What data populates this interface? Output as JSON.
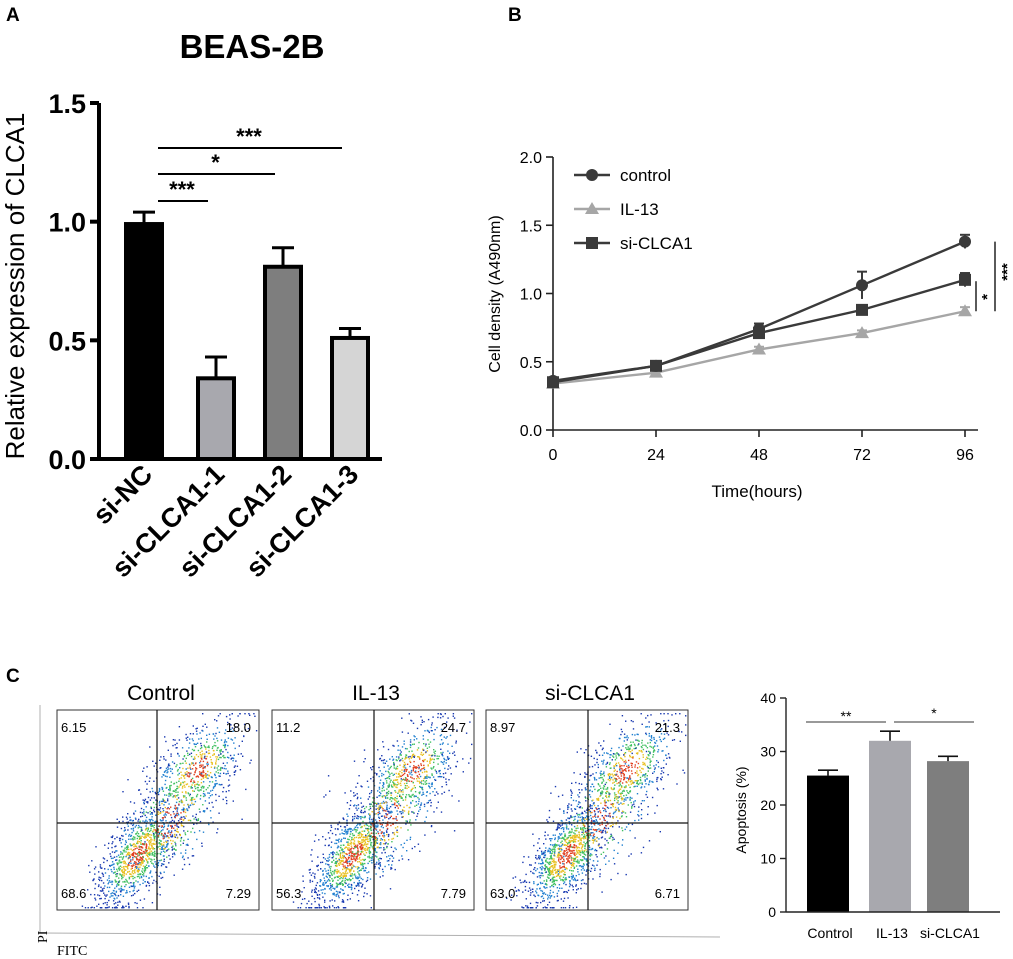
{
  "panel_labels": {
    "a": "A",
    "b": "B",
    "c": "C"
  },
  "chart_data": [
    {
      "id": "A",
      "type": "bar",
      "title": "BEAS-2B",
      "xlabel": "",
      "ylabel": "Relative expression of CLCA1",
      "ylim": [
        0,
        1.5
      ],
      "yticks": [
        "0.0",
        "0.5",
        "1.0",
        "1.5"
      ],
      "categories": [
        "si-NC",
        "si-CLCA1-1",
        "si-CLCA1-2",
        "si-CLCA1-3"
      ],
      "values": [
        0.99,
        0.34,
        0.81,
        0.51
      ],
      "errors": [
        0.05,
        0.09,
        0.08,
        0.04
      ],
      "colors": [
        "#000000",
        "#a8a8ae",
        "#7e7e7e",
        "#d5d5d5"
      ],
      "significance": [
        {
          "from": 0,
          "to": 1,
          "label": "***"
        },
        {
          "from": 0,
          "to": 2,
          "label": "*"
        },
        {
          "from": 0,
          "to": 3,
          "label": "***"
        }
      ]
    },
    {
      "id": "B",
      "type": "line",
      "xlabel": "Time(hours)",
      "ylabel": "Cell density (A490nm)",
      "x": [
        0,
        24,
        48,
        72,
        96
      ],
      "xticks": [
        "0",
        "24",
        "48",
        "72",
        "96"
      ],
      "ylim": [
        0,
        2.0
      ],
      "yticks": [
        "0.0",
        "0.5",
        "1.0",
        "1.5",
        "2.0"
      ],
      "legend_position": "top-left",
      "series": [
        {
          "name": "control",
          "marker": "circle",
          "color": "#3a3a3a",
          "values": [
            0.36,
            0.47,
            0.74,
            1.06,
            1.38
          ],
          "errors": [
            0.02,
            0.02,
            0.04,
            0.1,
            0.05
          ]
        },
        {
          "name": "IL-13",
          "marker": "triangle",
          "color": "#a6a6a6",
          "values": [
            0.34,
            0.42,
            0.59,
            0.71,
            0.87
          ],
          "errors": [
            0.02,
            0.02,
            0.02,
            0.02,
            0.03
          ]
        },
        {
          "name": "si-CLCA1",
          "marker": "square",
          "color": "#3a3a3a",
          "values": [
            0.35,
            0.47,
            0.71,
            0.88,
            1.1
          ],
          "errors": [
            0.02,
            0.02,
            0.02,
            0.02,
            0.05
          ]
        }
      ],
      "significance": [
        {
          "label": "*",
          "between": [
            "si-CLCA1",
            "IL-13"
          ]
        },
        {
          "label": "***",
          "between": [
            "control",
            "IL-13"
          ]
        }
      ]
    },
    {
      "id": "C",
      "type": "scatter",
      "xlabel": "FITC",
      "ylabel": "PI",
      "plots": [
        {
          "title": "Control",
          "quadrants": {
            "ul": "6.15",
            "ur": "18.0",
            "ll": "68.6",
            "lr": "7.29"
          }
        },
        {
          "title": "IL-13",
          "quadrants": {
            "ul": "11.2",
            "ur": "24.7",
            "ll": "56.3",
            "lr": "7.79"
          }
        },
        {
          "title": "si-CLCA1",
          "quadrants": {
            "ul": "8.97",
            "ur": "21.3",
            "ll": "63.0",
            "lr": "6.71"
          }
        }
      ]
    },
    {
      "id": "C-bar",
      "type": "bar",
      "xlabel": "",
      "ylabel": "Apoptosis (%)",
      "ylim": [
        0,
        40
      ],
      "yticks": [
        "0",
        "10",
        "20",
        "30",
        "40"
      ],
      "categories": [
        "Control",
        "IL-13",
        "si-CLCA1"
      ],
      "values": [
        25.5,
        32.0,
        28.2
      ],
      "errors": [
        1.0,
        1.8,
        0.9
      ],
      "colors": [
        "#000000",
        "#a8a8ae",
        "#7e7e7e"
      ],
      "significance": [
        {
          "from": 0,
          "to": 1,
          "label": "**"
        },
        {
          "from": 1,
          "to": 2,
          "label": "*"
        }
      ]
    }
  ]
}
